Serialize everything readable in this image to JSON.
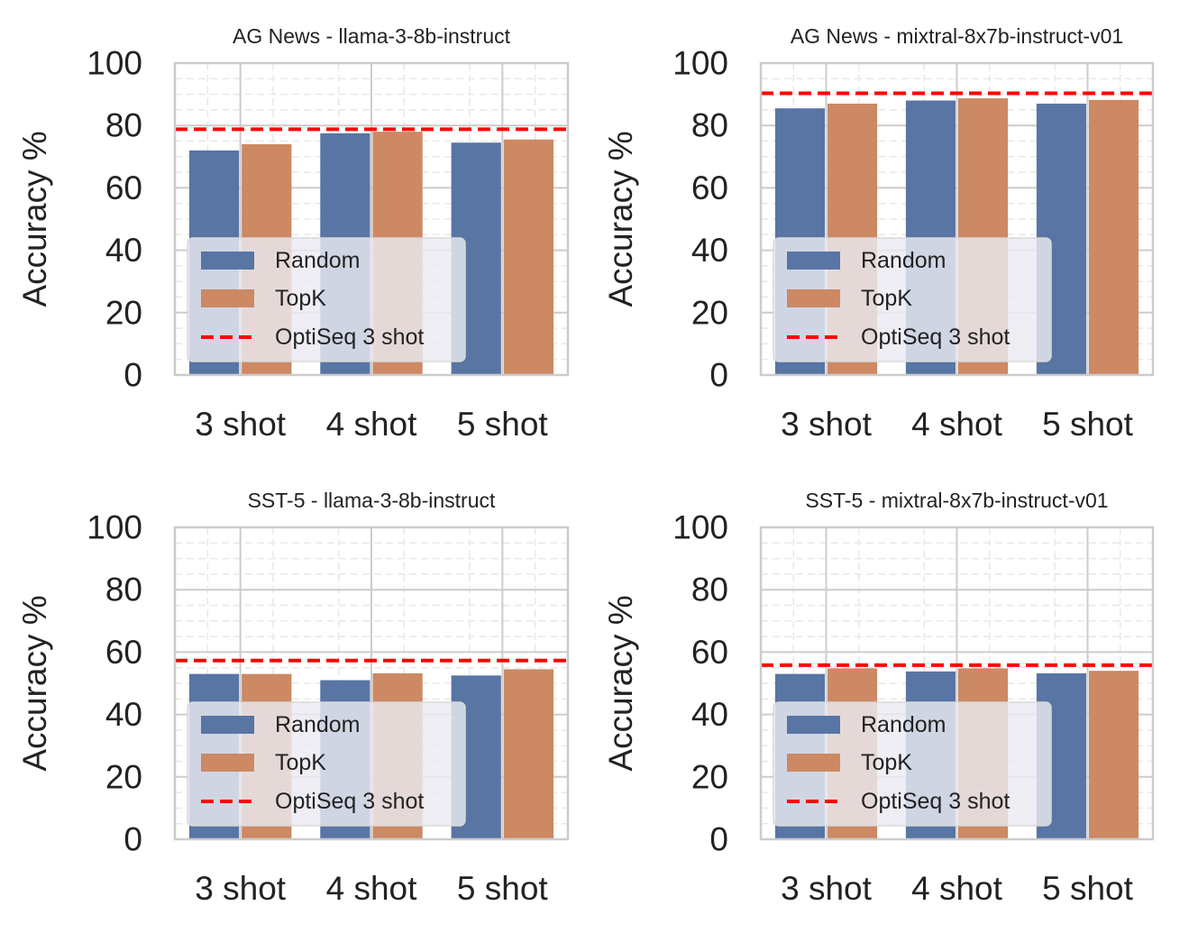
{
  "colors": {
    "random": "#5875a4",
    "topk": "#cc8963",
    "optiseq": "#ff0000",
    "grid": "#cccccc",
    "minor_grid": "#e8e8e8",
    "frame": "#cccccc"
  },
  "chart_data": [
    {
      "type": "bar",
      "title": "AG News - llama-3-8b-instruct",
      "ylabel": "Accuracy %",
      "xlabel": "",
      "ylim": [
        0,
        100
      ],
      "yticks": [
        "0",
        "20",
        "40",
        "60",
        "80",
        "100"
      ],
      "categories": [
        "3 shot",
        "4 shot",
        "5 shot"
      ],
      "series": [
        {
          "name": "Random",
          "values": [
            72,
            77.5,
            74.5
          ]
        },
        {
          "name": "TopK",
          "values": [
            74,
            78,
            75.5
          ]
        }
      ],
      "reference_line": {
        "name": "OptiSeq 3 shot",
        "value": 78.8
      },
      "legend_labels": [
        "Random",
        "TopK",
        "OptiSeq 3 shot"
      ],
      "legend_position": "lower-left"
    },
    {
      "type": "bar",
      "title": "AG News - mixtral-8x7b-instruct-v01",
      "ylabel": "Accuracy %",
      "xlabel": "",
      "ylim": [
        0,
        100
      ],
      "yticks": [
        "0",
        "20",
        "40",
        "60",
        "80",
        "100"
      ],
      "categories": [
        "3 shot",
        "4 shot",
        "5 shot"
      ],
      "series": [
        {
          "name": "Random",
          "values": [
            85.5,
            88,
            87
          ]
        },
        {
          "name": "TopK",
          "values": [
            87,
            88.7,
            88.2
          ]
        }
      ],
      "reference_line": {
        "name": "OptiSeq 3 shot",
        "value": 90.3
      },
      "legend_labels": [
        "Random",
        "TopK",
        "OptiSeq 3 shot"
      ],
      "legend_position": "lower-left"
    },
    {
      "type": "bar",
      "title": "SST-5 - llama-3-8b-instruct",
      "ylabel": "Accuracy %",
      "xlabel": "",
      "ylim": [
        0,
        100
      ],
      "yticks": [
        "0",
        "20",
        "40",
        "60",
        "80",
        "100"
      ],
      "categories": [
        "3 shot",
        "4 shot",
        "5 shot"
      ],
      "series": [
        {
          "name": "Random",
          "values": [
            53,
            51,
            52.5
          ]
        },
        {
          "name": "TopK",
          "values": [
            53,
            53.2,
            54.5
          ]
        }
      ],
      "reference_line": {
        "name": "OptiSeq 3 shot",
        "value": 57.3
      },
      "legend_labels": [
        "Random",
        "TopK",
        "OptiSeq 3 shot"
      ],
      "legend_position": "lower-left"
    },
    {
      "type": "bar",
      "title": "SST-5 - mixtral-8x7b-instruct-v01",
      "ylabel": "Accuracy %",
      "xlabel": "",
      "ylim": [
        0,
        100
      ],
      "yticks": [
        "0",
        "20",
        "40",
        "60",
        "80",
        "100"
      ],
      "categories": [
        "3 shot",
        "4 shot",
        "5 shot"
      ],
      "series": [
        {
          "name": "Random",
          "values": [
            53,
            53.8,
            53.2
          ]
        },
        {
          "name": "TopK",
          "values": [
            54.8,
            54.8,
            54
          ]
        }
      ],
      "reference_line": {
        "name": "OptiSeq 3 shot",
        "value": 55.8
      },
      "legend_labels": [
        "Random",
        "TopK",
        "OptiSeq 3 shot"
      ],
      "legend_position": "lower-left"
    }
  ]
}
